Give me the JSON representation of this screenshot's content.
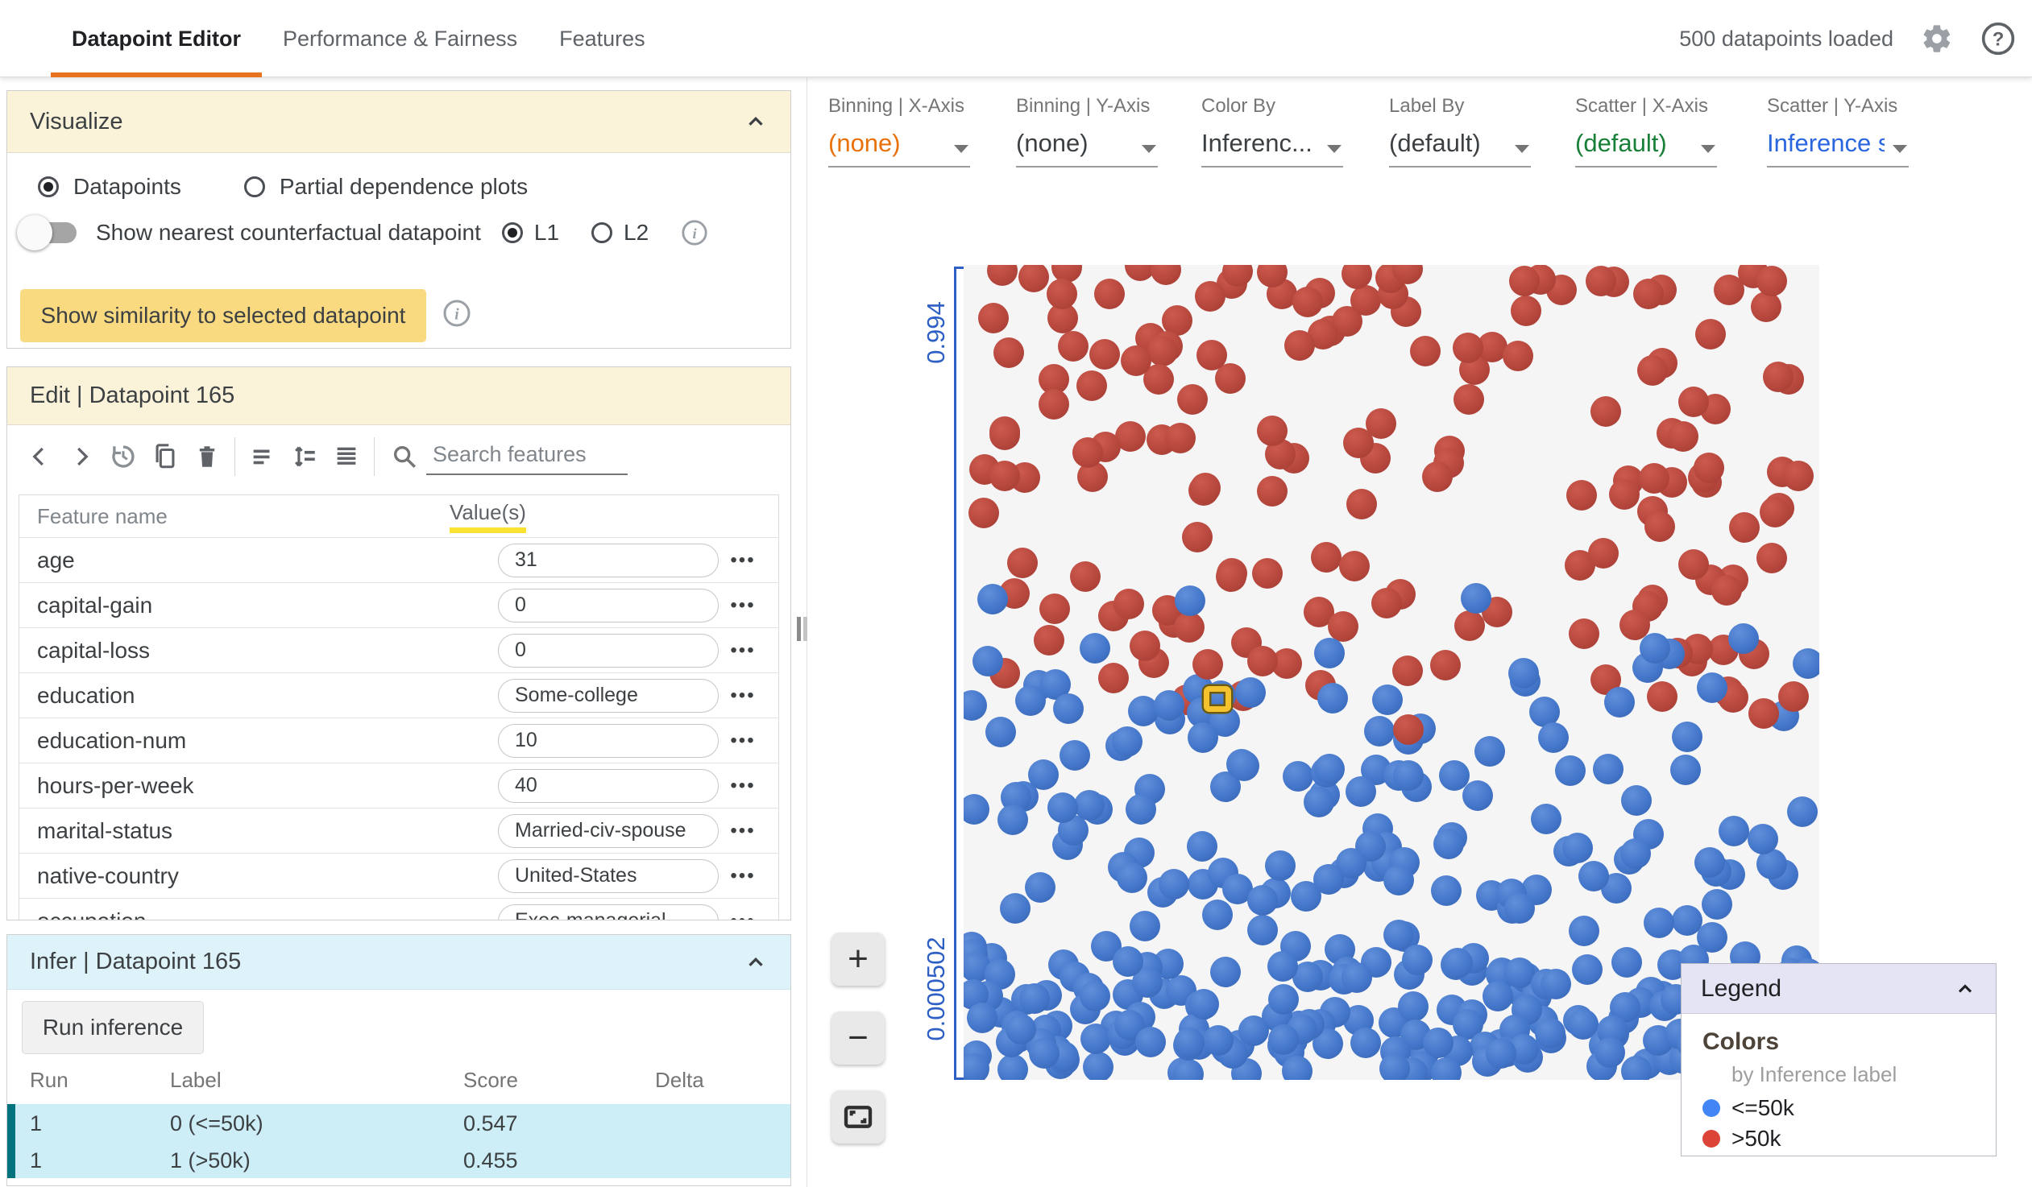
{
  "nav": {
    "tabs": [
      {
        "label": "Datapoint Editor",
        "active": true
      },
      {
        "label": "Performance & Fairness",
        "active": false
      },
      {
        "label": "Features",
        "active": false
      }
    ],
    "status": "500 datapoints loaded",
    "accent_color": "#e8731e"
  },
  "visualize": {
    "title": "Visualize",
    "mode_radios": [
      {
        "label": "Datapoints",
        "checked": true
      },
      {
        "label": "Partial dependence plots",
        "checked": false
      }
    ],
    "toggle_label": "Show nearest counterfactual datapoint",
    "norm_radios": [
      {
        "label": "L1",
        "checked": true
      },
      {
        "label": "L2",
        "checked": false
      }
    ],
    "similarity_button": "Show similarity to selected datapoint"
  },
  "edit": {
    "title": "Edit | Datapoint 165",
    "search_placeholder": "Search features",
    "columns": {
      "name": "Feature name",
      "values": "Value(s)"
    },
    "features": [
      {
        "name": "age",
        "value": "31"
      },
      {
        "name": "capital-gain",
        "value": "0"
      },
      {
        "name": "capital-loss",
        "value": "0"
      },
      {
        "name": "education",
        "value": "Some-college"
      },
      {
        "name": "education-num",
        "value": "10"
      },
      {
        "name": "hours-per-week",
        "value": "40"
      },
      {
        "name": "marital-status",
        "value": "Married-civ-spouse"
      },
      {
        "name": "native-country",
        "value": "United-States"
      },
      {
        "name": "occupation",
        "value": "Exec-managerial"
      }
    ]
  },
  "infer": {
    "title": "Infer | Datapoint 165",
    "run_button": "Run inference",
    "columns": [
      "Run",
      "Label",
      "Score",
      "Delta"
    ],
    "rows": [
      {
        "run": "1",
        "label": "0 (<=50k)",
        "score": "0.547",
        "delta": ""
      },
      {
        "run": "1",
        "label": "1 (>50k)",
        "score": "0.455",
        "delta": ""
      }
    ],
    "highlight_color": "#cdeef7",
    "highlight_border": "#00737f"
  },
  "controls": [
    {
      "label": "Binning | X-Axis",
      "value": "(none)",
      "tint": "orange"
    },
    {
      "label": "Binning | Y-Axis",
      "value": "(none)",
      "tint": "default"
    },
    {
      "label": "Color By",
      "value": "Inferenc...",
      "tint": "default"
    },
    {
      "label": "Label By",
      "value": "(default)",
      "tint": "default"
    },
    {
      "label": "Scatter | X-Axis",
      "value": "(default)",
      "tint": "green"
    },
    {
      "label": "Scatter | Y-Axis",
      "value": "Inference s",
      "tint": "blue"
    }
  ],
  "zoom_controls": {
    "zoom_in": "+",
    "zoom_out": "−",
    "fit": "fit-to-screen"
  },
  "legend": {
    "title": "Legend",
    "section": "Colors",
    "subtitle": "by Inference label",
    "items": [
      {
        "label": "<=50k",
        "color": "#4285f4",
        "series": "lte50k"
      },
      {
        "label": ">50k",
        "color": "#db4437",
        "series": "gt50k"
      }
    ]
  },
  "chart_data": {
    "type": "scatter",
    "total_datapoints_loaded": 500,
    "y_axis": {
      "top_tick_label": "0.994",
      "bottom_tick_label": "0.000502",
      "tick_color": "#2d5fc5"
    },
    "series": [
      {
        "id": "lte50k",
        "name": "<=50k",
        "color": "#4285f4",
        "approx_count": 315,
        "region": "lower half, very dense near bottom edge"
      },
      {
        "id": "gt50k",
        "name": ">50k",
        "color": "#db4437",
        "approx_count": 167,
        "region": "upper half, scattered from top edge to middle"
      }
    ],
    "selected_point": {
      "x_pct": 30.3,
      "y_pct": 54.0,
      "marker": "yellow-square-outline"
    },
    "generator": {
      "seed": 20,
      "dot_diameter": 38,
      "groups": [
        {
          "series": "gt50k",
          "count": 150,
          "x": [
            0.5,
            99.5
          ],
          "y": [
            0,
            54
          ],
          "pow": 1.15
        },
        {
          "series": "gt50k",
          "count": 12,
          "x": [
            1,
            99
          ],
          "y": [
            0,
            4
          ],
          "pow": 1
        },
        {
          "series": "lte50k",
          "count": 12,
          "x": [
            1,
            99
          ],
          "y": [
            40,
            52
          ],
          "pow": 1
        },
        {
          "series": "lte50k",
          "count": 150,
          "x": [
            0.5,
            99.5
          ],
          "y": [
            50,
            90
          ],
          "pow": 0.8
        },
        {
          "series": "lte50k",
          "count": 60,
          "x": [
            0.5,
            99.5
          ],
          "y": [
            85,
            94
          ],
          "pow": 1
        },
        {
          "series": "lte50k",
          "count": 85,
          "x": [
            0.5,
            99.5
          ],
          "y": [
            93,
            99.5
          ],
          "pow": 1
        }
      ],
      "fixed": [
        {
          "series": "gt50k",
          "x": 93.5,
          "y": 55
        },
        {
          "series": "gt50k",
          "x": 97,
          "y": 53
        },
        {
          "series": "gt50k",
          "x": 10,
          "y": 46
        },
        {
          "series": "gt50k",
          "x": 52,
          "y": 57
        },
        {
          "series": "gt50k",
          "x": 28.5,
          "y": 49
        },
        {
          "series": "lte50k",
          "x": 30.5,
          "y": 56
        },
        {
          "series": "lte50k",
          "x": 33.5,
          "y": 52.5
        },
        {
          "series": "lte50k",
          "x": 28,
          "y": 58
        }
      ]
    }
  }
}
